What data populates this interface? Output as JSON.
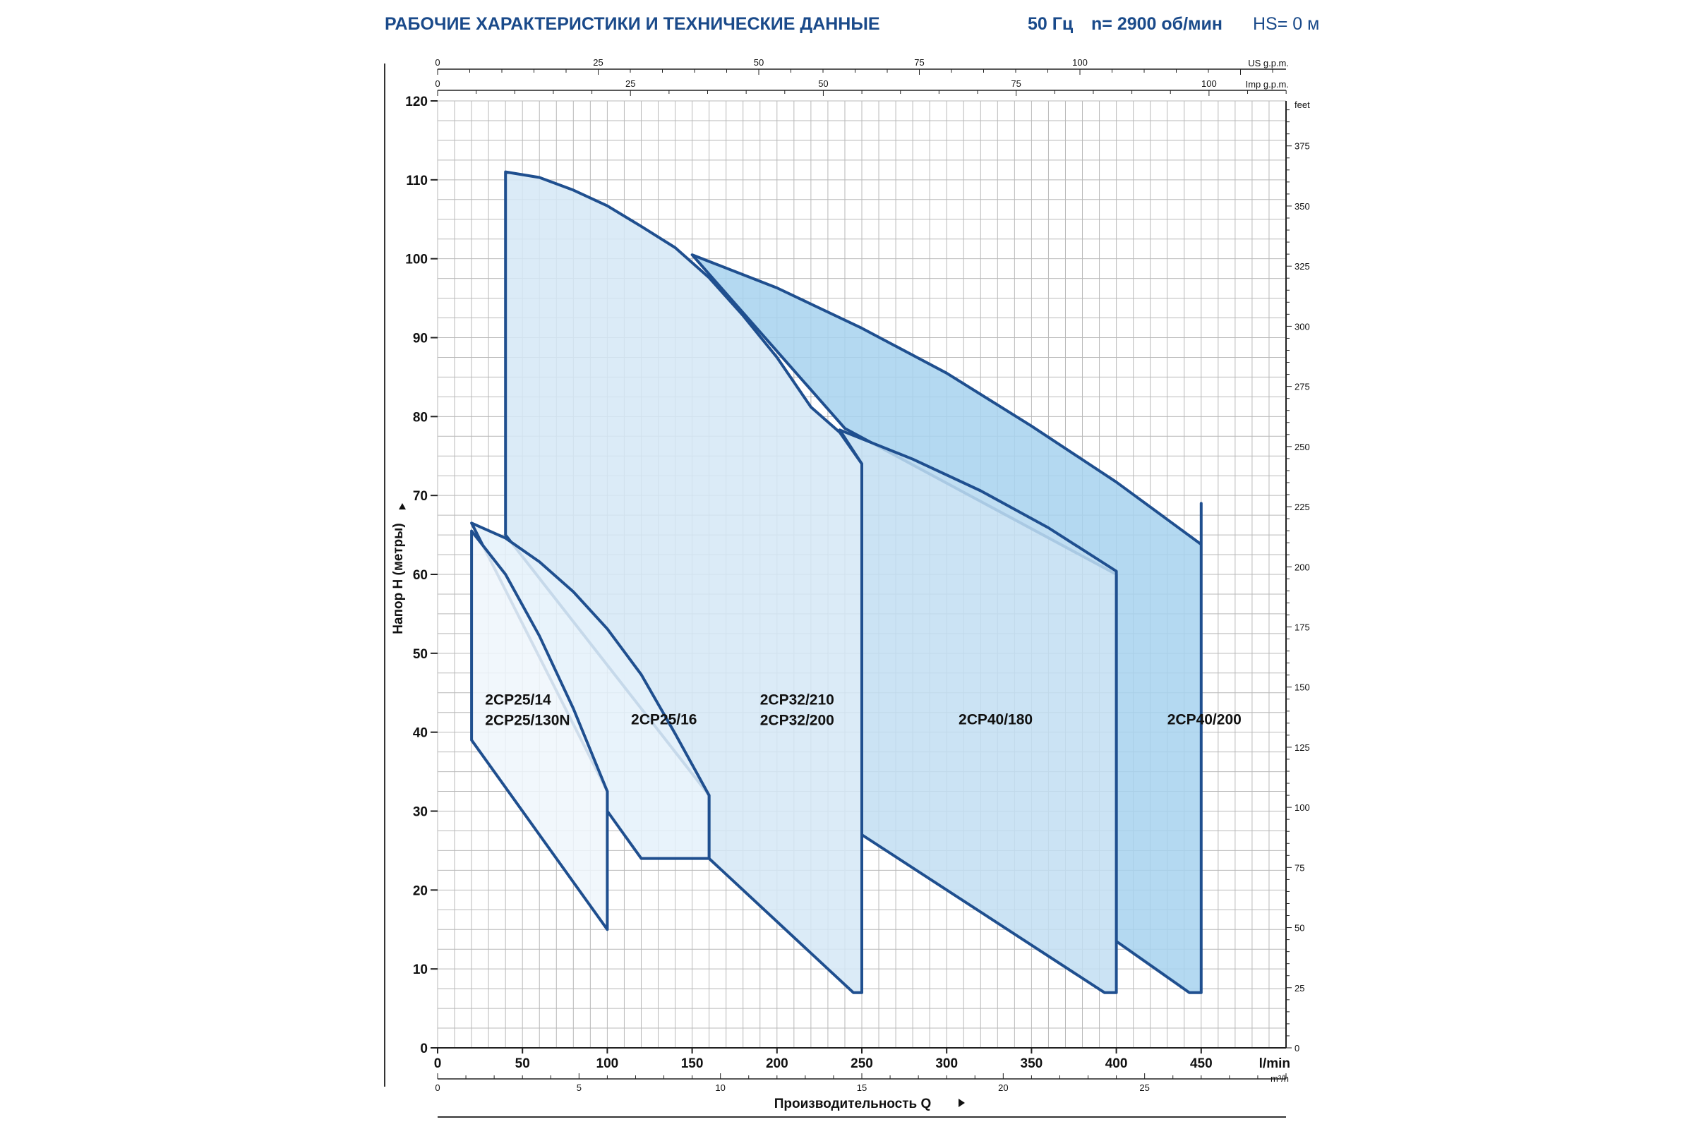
{
  "header": {
    "title": "РАБОЧИЕ ХАРАКТЕРИСТИКИ И ТЕХНИЧЕСКИЕ ДАННЫЕ",
    "frequency": "50 Гц",
    "speed": "n= 2900 об/мин",
    "hs": "HS= 0 м"
  },
  "chart_data": {
    "type": "area",
    "xlabel": "Производительность Q",
    "ylabel": "Напор H (метры)",
    "xlim": [
      0,
      500
    ],
    "ylim": [
      0,
      120
    ],
    "x_unit": "l/min",
    "x_ticks": [
      "0",
      "50",
      "100",
      "150",
      "200",
      "250",
      "300",
      "350",
      "400",
      "450"
    ],
    "y_ticks": [
      "0",
      "10",
      "20",
      "30",
      "40",
      "50",
      "60",
      "70",
      "80",
      "90",
      "100",
      "110",
      "120"
    ],
    "secondary_axes": {
      "bottom_m3h": {
        "unit": "m³/h",
        "ticks": [
          "0",
          "5",
          "10",
          "15",
          "20",
          "25"
        ],
        "values": [
          0,
          5,
          10,
          15,
          20,
          25
        ]
      },
      "top_us_gpm": {
        "unit": "US g.p.m.",
        "ticks": [
          "0",
          "25",
          "50",
          "75",
          "100"
        ],
        "values": [
          0,
          25,
          50,
          75,
          100
        ]
      },
      "top_imp_gpm": {
        "unit": "Imp g.p.m.",
        "ticks": [
          "0",
          "25",
          "50",
          "75",
          "100"
        ],
        "values": [
          0,
          25,
          50,
          75,
          100
        ]
      },
      "right_feet": {
        "unit": "feet",
        "ticks": [
          "0",
          "25",
          "50",
          "75",
          "100",
          "125",
          "150",
          "175",
          "200",
          "225",
          "250",
          "275",
          "300",
          "325",
          "350",
          "375"
        ],
        "values": [
          0,
          25,
          50,
          75,
          100,
          125,
          150,
          175,
          200,
          225,
          250,
          275,
          300,
          325,
          350,
          375
        ]
      }
    },
    "series": [
      {
        "name": "2CP40/200",
        "label_lines": [
          "2CP40/200"
        ],
        "label_at": [
          430,
          41
        ],
        "fill": "#a7d2ee",
        "polygon": [
          [
            150,
            100.5
          ],
          [
            200,
            96.3
          ],
          [
            250,
            91.2
          ],
          [
            300,
            85.5
          ],
          [
            350,
            78.8
          ],
          [
            400,
            71.7
          ],
          [
            450,
            63.8
          ],
          [
            450,
            63.8
          ],
          [
            450,
            69
          ],
          [
            450,
            7
          ],
          [
            443,
            7
          ],
          [
            400,
            13.5
          ],
          [
            400,
            60
          ],
          [
            240,
            78.5
          ],
          [
            150,
            100.5
          ]
        ]
      },
      {
        "name": "2CP40/180",
        "label_lines": [
          "2CP40/180"
        ],
        "label_at": [
          307,
          41
        ],
        "fill": "#c2def2",
        "polygon": [
          [
            237,
            78.3
          ],
          [
            280,
            74.6
          ],
          [
            320,
            70.6
          ],
          [
            360,
            65.9
          ],
          [
            400,
            60.4
          ],
          [
            400,
            7
          ],
          [
            393,
            7
          ],
          [
            250,
            27
          ],
          [
            250,
            74
          ],
          [
            237,
            78.3
          ]
        ]
      },
      {
        "name": "2CP32/210",
        "label_lines": [
          "2CP32/210",
          "2CP32/200"
        ],
        "label_at": [
          190,
          43.5
        ],
        "fill": "#d5e8f6",
        "polygon": [
          [
            40,
            111
          ],
          [
            60,
            110.3
          ],
          [
            80,
            108.7
          ],
          [
            100,
            106.7
          ],
          [
            120,
            104.1
          ],
          [
            140,
            101.4
          ],
          [
            160,
            97.6
          ],
          [
            180,
            92.8
          ],
          [
            200,
            87.5
          ],
          [
            220,
            81.2
          ],
          [
            237,
            78
          ],
          [
            250,
            74
          ],
          [
            250,
            7
          ],
          [
            245,
            7
          ],
          [
            160,
            24
          ],
          [
            160,
            32
          ],
          [
            40,
            65
          ],
          [
            40,
            111
          ]
        ]
      },
      {
        "name": "2CP25/16",
        "label_lines": [
          "2CP25/16"
        ],
        "label_at": [
          114,
          41
        ],
        "fill": "#e4f1fa",
        "polygon": [
          [
            20,
            66.5
          ],
          [
            40,
            64.6
          ],
          [
            60,
            61.6
          ],
          [
            80,
            57.8
          ],
          [
            100,
            53.1
          ],
          [
            120,
            47.3
          ],
          [
            140,
            39.8
          ],
          [
            160,
            32
          ],
          [
            160,
            24
          ],
          [
            120,
            24
          ],
          [
            100,
            30
          ],
          [
            100,
            32.5
          ],
          [
            20,
            66.5
          ]
        ]
      },
      {
        "name": "2CP25/14",
        "label_lines": [
          "2CP25/14",
          "2CP25/130N"
        ],
        "label_at": [
          28,
          43.5
        ],
        "fill": "#eef6fc",
        "polygon": [
          [
            20,
            65.5
          ],
          [
            40,
            60
          ],
          [
            60,
            52.2
          ],
          [
            80,
            43
          ],
          [
            100,
            32.5
          ],
          [
            100,
            15
          ],
          [
            20,
            39
          ],
          [
            20,
            65.5
          ]
        ]
      }
    ],
    "grid": true,
    "legend": "none"
  }
}
